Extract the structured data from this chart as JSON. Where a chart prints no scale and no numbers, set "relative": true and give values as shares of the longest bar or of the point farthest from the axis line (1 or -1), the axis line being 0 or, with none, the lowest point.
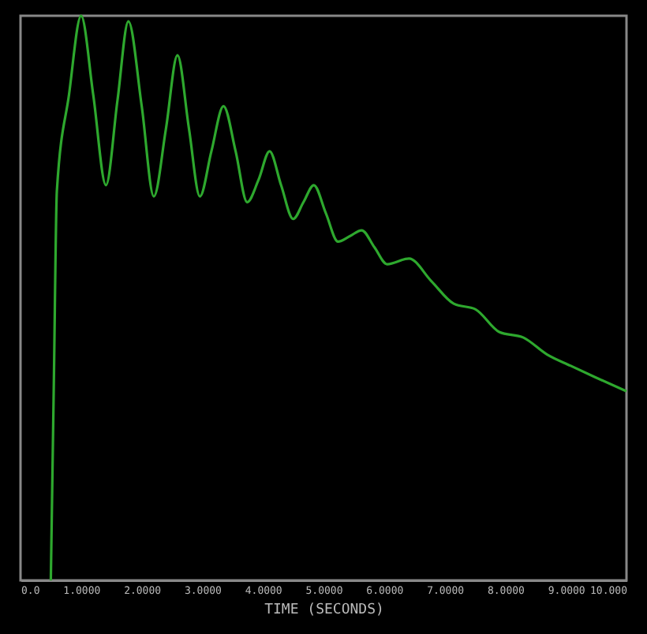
{
  "chart_data": {
    "type": "line",
    "relative": true,
    "xlabel": "TIME (SECONDS)",
    "xlim": [
      0,
      10
    ],
    "xticks": [
      {
        "value": 0,
        "label": "0.0"
      },
      {
        "value": 1,
        "label": "1.0000"
      },
      {
        "value": 2,
        "label": "2.0000"
      },
      {
        "value": 3,
        "label": "3.0000"
      },
      {
        "value": 4,
        "label": "4.0000"
      },
      {
        "value": 5,
        "label": "5.0000"
      },
      {
        "value": 6,
        "label": "6.0000"
      },
      {
        "value": 7,
        "label": "7.0000"
      },
      {
        "value": 8,
        "label": "8.0000"
      },
      {
        "value": 9,
        "label": "9.0000"
      },
      {
        "value": 10,
        "label": "10.000"
      }
    ],
    "x": [
      0.5,
      0.55,
      0.6,
      0.8,
      1.0,
      1.2,
      1.41,
      1.6,
      1.78,
      2.0,
      2.2,
      2.4,
      2.59,
      2.78,
      2.96,
      3.15,
      3.35,
      3.55,
      3.74,
      3.93,
      4.11,
      4.3,
      4.5,
      4.67,
      4.84,
      5.04,
      5.24,
      5.44,
      5.63,
      5.84,
      6.05,
      6.41,
      6.78,
      7.15,
      7.51,
      7.9,
      8.3,
      8.69,
      9.08,
      9.48,
      10.0
    ],
    "series": [
      {
        "color": "#2ea82e",
        "values": [
          0,
          0.35,
          0.69,
          0.86,
          1.0,
          0.86,
          0.7,
          0.85,
          0.99,
          0.84,
          0.68,
          0.8,
          0.93,
          0.8,
          0.68,
          0.76,
          0.84,
          0.76,
          0.67,
          0.71,
          0.76,
          0.7,
          0.64,
          0.67,
          0.7,
          0.65,
          0.6,
          0.61,
          0.62,
          0.59,
          0.56,
          0.57,
          0.53,
          0.49,
          0.48,
          0.44,
          0.43,
          0.4,
          0.38,
          0.36,
          0.335
        ]
      }
    ],
    "grid": false,
    "marker": "none",
    "line_style": "solid"
  }
}
